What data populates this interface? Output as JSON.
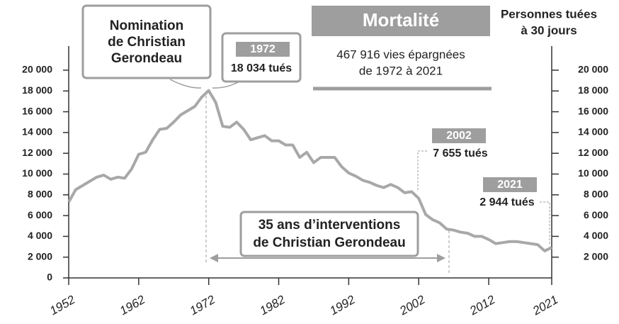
{
  "chart_data": {
    "type": "line",
    "title": "Mortalité",
    "subtitle": [
      "467 916 vies épargnées",
      "de 1972 à 2021"
    ],
    "ylabel": [
      "Personnes tuées",
      "à 30 jours"
    ],
    "annotations": [
      {
        "text": [
          "Nomination",
          "de Christian",
          "Gerondeau"
        ]
      },
      {
        "text": [
          "35 ans d’interventions",
          "de Christian Gerondeau"
        ]
      }
    ],
    "x": [
      1952,
      1953,
      1954,
      1955,
      1956,
      1957,
      1958,
      1959,
      1960,
      1961,
      1962,
      1963,
      1964,
      1965,
      1966,
      1967,
      1968,
      1969,
      1970,
      1971,
      1972,
      1973,
      1974,
      1975,
      1976,
      1977,
      1978,
      1979,
      1980,
      1981,
      1982,
      1983,
      1984,
      1985,
      1986,
      1987,
      1988,
      1989,
      1990,
      1991,
      1992,
      1993,
      1994,
      1995,
      1996,
      1997,
      1998,
      1999,
      2000,
      2001,
      2002,
      2003,
      2004,
      2005,
      2006,
      2007,
      2008,
      2009,
      2010,
      2011,
      2012,
      2013,
      2014,
      2015,
      2016,
      2017,
      2018,
      2019,
      2020,
      2021
    ],
    "series": [
      {
        "name": "Personnes tuées à 30 jours",
        "color": "#a8a8a8",
        "values": [
          7300,
          8500,
          8900,
          9300,
          9700,
          9900,
          9500,
          9700,
          9600,
          10500,
          11900,
          12100,
          13300,
          14300,
          14400,
          15000,
          15700,
          16100,
          16500,
          17400,
          18034,
          16900,
          14600,
          14500,
          15000,
          14300,
          13300,
          13500,
          13700,
          13200,
          13200,
          12800,
          12800,
          11600,
          12100,
          11100,
          11600,
          11600,
          11600,
          10700,
          10100,
          9800,
          9400,
          9200,
          8900,
          8700,
          9000,
          8700,
          8200,
          8300,
          7655,
          6100,
          5600,
          5300,
          4700,
          4600,
          4400,
          4300,
          4000,
          4000,
          3700,
          3300,
          3400,
          3500,
          3500,
          3400,
          3300,
          3200,
          2600,
          2944
        ],
        "value_labels": [
          null,
          null,
          null,
          null,
          null,
          null,
          null,
          null,
          null,
          null,
          null,
          null,
          null,
          null,
          null,
          null,
          null,
          null,
          null,
          null,
          "18 034 tués",
          null,
          null,
          null,
          null,
          null,
          null,
          null,
          null,
          null,
          null,
          null,
          null,
          null,
          null,
          null,
          null,
          null,
          null,
          null,
          null,
          null,
          null,
          null,
          null,
          null,
          null,
          null,
          null,
          null,
          "7 655 tués",
          null,
          null,
          null,
          null,
          null,
          null,
          null,
          null,
          null,
          null,
          null,
          null,
          null,
          null,
          null,
          null,
          null,
          null,
          "2 944 tués"
        ]
      }
    ],
    "xlim": [
      1952,
      2021
    ],
    "xticks": [
      1952,
      1962,
      1972,
      1982,
      1992,
      2002,
      2012,
      2021
    ],
    "ylim": [
      0,
      20000
    ],
    "yticks": [
      0,
      {
        "value": 2000,
        "label": "2 000"
      },
      {
        "value": 4000,
        "label": "4 000"
      },
      {
        "value": 6000,
        "label": "6 000"
      },
      {
        "value": 8000,
        "label": "8 000"
      },
      {
        "value": 10000,
        "label": "10 000"
      },
      {
        "value": 12000,
        "label": "12 000"
      },
      {
        "value": 14000,
        "label": "14 000"
      },
      {
        "value": 16000,
        "label": "16 000"
      },
      {
        "value": 18000,
        "label": "18 000"
      },
      {
        "value": 20000,
        "label": "20 000"
      }
    ],
    "y2lim": [
      0,
      20000
    ],
    "y2ticks": [
      {
        "value": 2000,
        "label": "2 000"
      },
      {
        "value": 4000,
        "label": "4 000"
      },
      {
        "value": 6000,
        "label": "6 000"
      },
      {
        "value": 8000,
        "label": "8 000"
      },
      {
        "value": 10000,
        "label": "10 000"
      },
      {
        "value": 12000,
        "label": "12 000"
      },
      {
        "value": 14000,
        "label": "14 000"
      },
      {
        "value": 16000,
        "label": "16 000"
      },
      {
        "value": 18000,
        "label": "18 000"
      },
      {
        "value": 20000,
        "label": "20 000"
      }
    ]
  }
}
